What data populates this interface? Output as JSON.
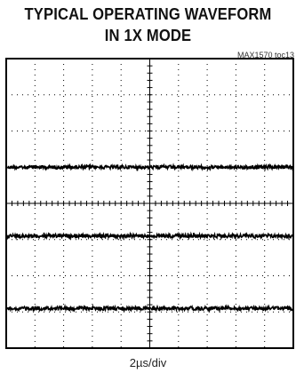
{
  "title_line1": "TYPICAL OPERATING WAVEFORM",
  "title_line2": "IN 1X MODE",
  "figure_id": "MAX1570 toc13",
  "x_scale": "2µs/div",
  "chart_data": {
    "type": "line",
    "title": "TYPICAL OPERATING WAVEFORM IN 1X MODE",
    "x_divisions": 10,
    "y_divisions": 8,
    "grid": "dotted",
    "xlabel": "2µs/div",
    "series": [
      {
        "level_div": 5.0,
        "noise_div": 0.05
      },
      {
        "level_div": 3.1,
        "noise_div": 0.05
      },
      {
        "level_div": 1.1,
        "noise_div": 0.05
      }
    ]
  }
}
